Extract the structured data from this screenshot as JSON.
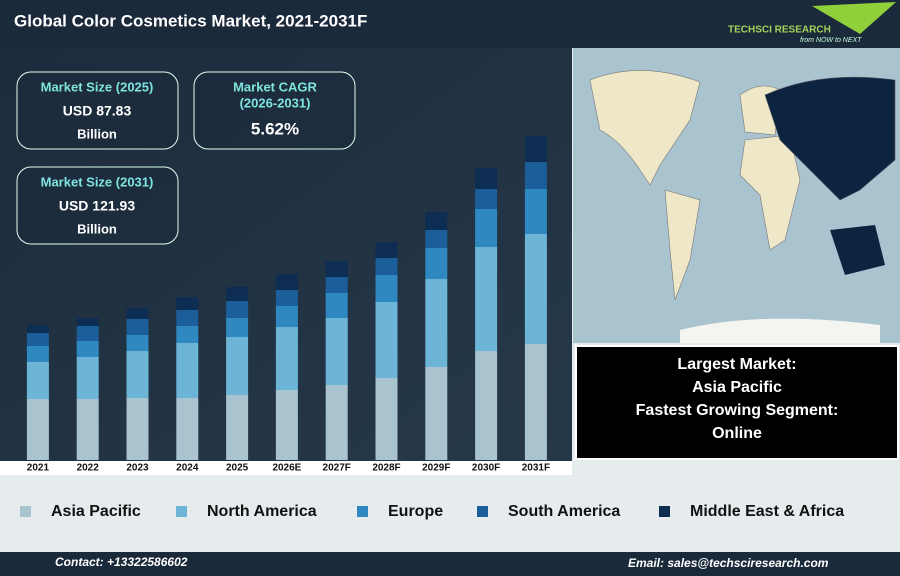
{
  "header": {
    "title": "Global Color Cosmetics Market, 2021-2031F",
    "logo": "TECHSCI RESEARCH",
    "tagline": "from NOW to NEXT"
  },
  "kpis": [
    {
      "label": "Market Size (2025)",
      "value": "USD 87.83",
      "unit": "Billion"
    },
    {
      "label": "Market CAGR",
      "period": "(2026-2031)",
      "value": "5.62%"
    },
    {
      "label": "Market Size (2031)",
      "value": "USD 121.93",
      "unit": "Billion"
    }
  ],
  "highlight": [
    "Largest Market:",
    "Asia Pacific",
    "Fastest Growing Segment:",
    "Online"
  ],
  "footer": {
    "contact": "Contact: +13322586602",
    "email": "Email: sales@techsciresearch.com"
  },
  "chart_data": {
    "type": "stacked_bar",
    "categories": [
      "2021",
      "2022",
      "2023",
      "2024",
      "2025",
      "2026E",
      "2027F",
      "2028F",
      "2029F",
      "2030F",
      "2031F"
    ],
    "series": [
      {
        "name": "Asia Pacific",
        "color": "#a9c3cf",
        "values": [
          61,
          61,
          62,
          62,
          65,
          70,
          75,
          82,
          93,
          109,
          116
        ]
      },
      {
        "name": "North America",
        "color": "#6db5d7",
        "values": [
          37,
          42,
          47,
          55,
          58,
          63,
          67,
          76,
          88,
          104,
          110
        ]
      },
      {
        "name": "Europe",
        "color": "#2f88bf",
        "values": [
          16,
          16,
          16,
          17,
          19,
          21,
          25,
          27,
          31,
          38,
          45
        ]
      },
      {
        "name": "South America",
        "color": "#1b5e99",
        "values": [
          13,
          15,
          16,
          16,
          17,
          16,
          16,
          17,
          18,
          20,
          27
        ]
      },
      {
        "name": "Middle East & Africa",
        "color": "#0e2d52",
        "values": [
          8,
          8,
          11,
          13,
          14,
          16,
          16,
          16,
          18,
          21,
          26
        ]
      }
    ],
    "ylim": [
      0,
      340
    ]
  }
}
